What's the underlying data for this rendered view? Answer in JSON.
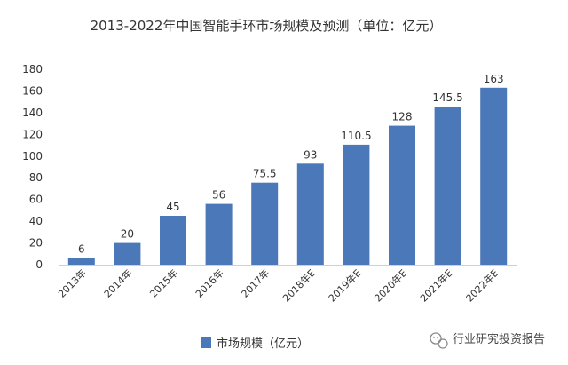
{
  "chart_data": {
    "type": "bar",
    "title": "2013-2022年中国智能手环市场规模及预测（单位：亿元）",
    "categories": [
      "2013年",
      "2014年",
      "2015年",
      "2016年",
      "2017年",
      "2018年E",
      "2019年E",
      "2020年E",
      "2021年E",
      "2022年E"
    ],
    "series": [
      {
        "name": "市场规模（亿元）",
        "values": [
          6,
          20,
          45,
          56,
          75.5,
          93,
          110.5,
          128,
          145.5,
          163
        ],
        "labels": [
          "6",
          "20",
          "45",
          "56",
          "75.5",
          "93",
          "110.5",
          "128",
          "145.5",
          "163"
        ]
      }
    ],
    "ylim": [
      0,
      180
    ],
    "yticks": [
      0,
      20,
      40,
      60,
      80,
      100,
      120,
      140,
      160,
      180
    ],
    "legend_position": "bottom-left",
    "grid": false
  },
  "watermark": {
    "text": "行业研究投资报告",
    "icon": "wechat-icon"
  },
  "colors": {
    "bar": "#4a78b8",
    "axis": "#d0d0d0",
    "text": "#333333"
  }
}
